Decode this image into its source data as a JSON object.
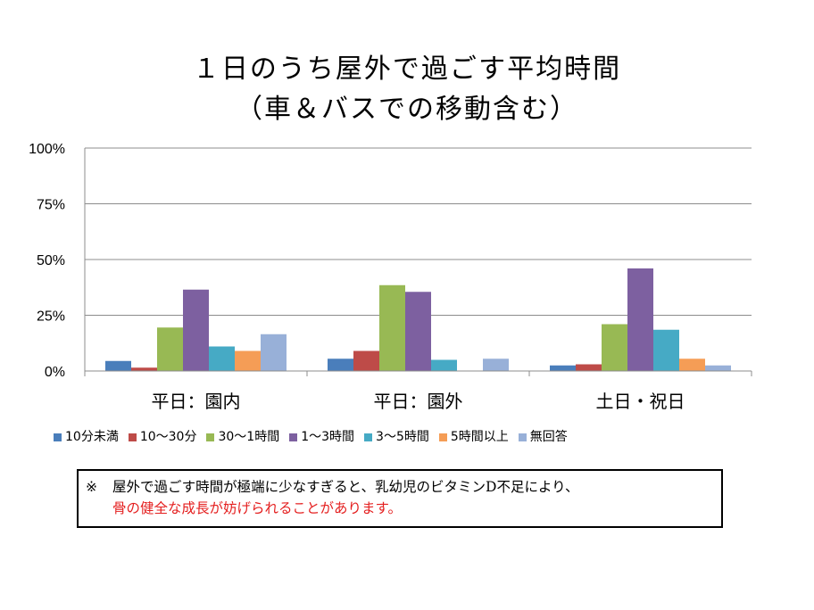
{
  "chart_data": {
    "type": "bar",
    "title_line1": "１日のうち屋外で過ごす平均時間",
    "title_line2": "（車＆バスでの移動含む）",
    "categories": [
      "平日：園内",
      "平日：園外",
      "土日・祝日"
    ],
    "yticks": [
      "0%",
      "25%",
      "50%",
      "75%",
      "100%"
    ],
    "ylim": [
      0,
      100
    ],
    "series": [
      {
        "name": "10分未満",
        "color": "#4a7ebb",
        "values": [
          4.5,
          5.5,
          2.5
        ]
      },
      {
        "name": "10～30分",
        "color": "#be4b48",
        "values": [
          1.5,
          9.0,
          3.0
        ]
      },
      {
        "name": "30～1時間",
        "color": "#98b954",
        "values": [
          19.5,
          38.5,
          21.0
        ]
      },
      {
        "name": "1～3時間",
        "color": "#7d60a0",
        "values": [
          36.5,
          35.5,
          46.0
        ]
      },
      {
        "name": "3～5時間",
        "color": "#46aac5",
        "values": [
          11.0,
          5.0,
          18.5
        ]
      },
      {
        "name": "5時間以上",
        "color": "#f59d56",
        "values": [
          9.0,
          0,
          5.5
        ]
      },
      {
        "name": "無回答",
        "color": "#98b0d8",
        "values": [
          16.5,
          5.5,
          2.5
        ]
      }
    ]
  },
  "note": {
    "mark": "※",
    "line1": "屋外で過ごす時間が極端に少なすぎると、乳幼児のビタミンD不足により、",
    "line2": "骨の健全な成長が妨げられることがあります。"
  }
}
